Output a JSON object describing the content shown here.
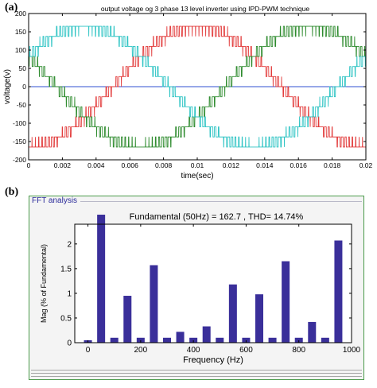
{
  "panels": {
    "a_label": "(a)",
    "b_label": "(b)"
  },
  "fft_window": {
    "title": "FFT analysis"
  },
  "chart_data": [
    {
      "type": "line",
      "title": "output voltage og 3 phase 13 level inverter using IPD-PWM technique",
      "xlabel": "time(sec)",
      "ylabel": "voltage(v)",
      "xlim": [
        0,
        0.02
      ],
      "ylim": [
        -200,
        200
      ],
      "xticks": [
        "0",
        "0.002",
        "0.004",
        "0.006",
        "0.008",
        "0.01",
        "0.012",
        "0.014",
        "0.016",
        "0.018",
        "0.02"
      ],
      "yticks": [
        "200",
        "150",
        "100",
        "50",
        "0",
        "-50",
        "-100",
        "-150",
        "-200"
      ],
      "levels_per_half": 6,
      "peak": 165,
      "fundamental_hz": 50,
      "series": [
        {
          "color": "#e23b3b",
          "phase_deg": -90
        },
        {
          "color": "#2e8b2e",
          "phase_deg": 150
        },
        {
          "color": "#2ec4c4",
          "phase_deg": 30
        }
      ],
      "zero_line_color": "#3050d0"
    },
    {
      "type": "bar",
      "title": "Fundamental (50Hz) = 162.7 , THD= 14.74%",
      "xlabel": "Frequency (Hz)",
      "ylabel": "Mag (% of Fundamental)",
      "xlim": [
        -50,
        1000
      ],
      "ylim": [
        0,
        2.4
      ],
      "xticks": [
        "0",
        "200",
        "400",
        "600",
        "800",
        "1000"
      ],
      "yticks": [
        "0",
        "0.5",
        "1",
        "1.5",
        "2"
      ],
      "bar_color": "#3a2f9a",
      "x": [
        0,
        50,
        100,
        150,
        200,
        250,
        300,
        350,
        400,
        450,
        500,
        550,
        600,
        650,
        700,
        750,
        800,
        850,
        900,
        950
      ],
      "values": [
        0.05,
        2.6,
        0.1,
        0.95,
        0.1,
        1.57,
        0.1,
        0.22,
        0.1,
        0.33,
        0.1,
        1.18,
        0.1,
        0.98,
        0.1,
        1.65,
        0.1,
        0.42,
        0.1,
        2.07
      ]
    }
  ]
}
